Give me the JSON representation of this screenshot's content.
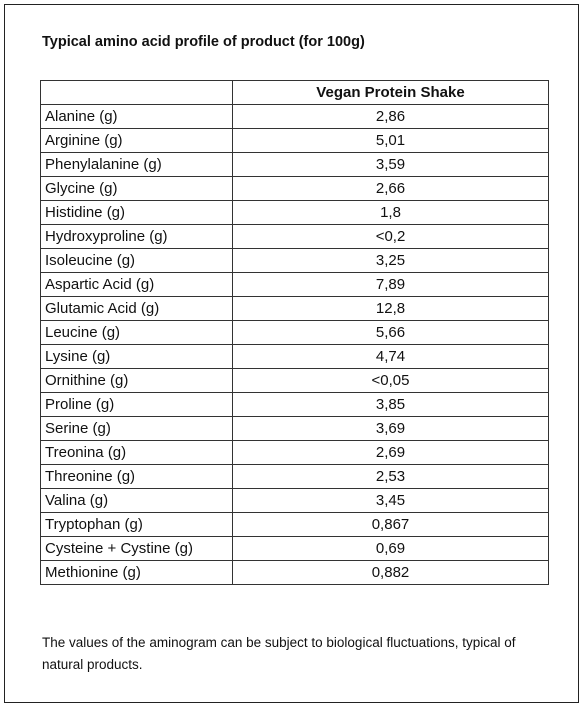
{
  "header": {
    "title": "Typical amino acid profile of product (for 100g)"
  },
  "table": {
    "columns": [
      "",
      "Vegan Protein Shake"
    ],
    "rows": [
      [
        "Alanine (g)",
        "2,86"
      ],
      [
        "Arginine (g)",
        "5,01"
      ],
      [
        "Phenylalanine (g)",
        "3,59"
      ],
      [
        "Glycine (g)",
        "2,66"
      ],
      [
        "Histidine (g)",
        "1,8"
      ],
      [
        "Hydroxyproline (g)",
        "<0,2"
      ],
      [
        "Isoleucine (g)",
        "3,25"
      ],
      [
        "Aspartic Acid (g)",
        "7,89"
      ],
      [
        "Glutamic Acid (g)",
        "12,8"
      ],
      [
        "Leucine (g)",
        "5,66"
      ],
      [
        "Lysine (g)",
        "4,74"
      ],
      [
        "Ornithine (g)",
        "<0,05"
      ],
      [
        "Proline (g)",
        "3,85"
      ],
      [
        "Serine (g)",
        "3,69"
      ],
      [
        "Treonina (g)",
        "2,69"
      ],
      [
        "Threonine (g)",
        "2,53"
      ],
      [
        "Valina (g)",
        "3,45"
      ],
      [
        "Tryptophan (g)",
        "0,867"
      ],
      [
        "Cysteine + Cystine (g)",
        "0,69"
      ],
      [
        "Methionine (g)",
        "0,882"
      ]
    ]
  },
  "footnote": "The values of the aminogram can be subject to biological fluctuations, typical of natural products."
}
